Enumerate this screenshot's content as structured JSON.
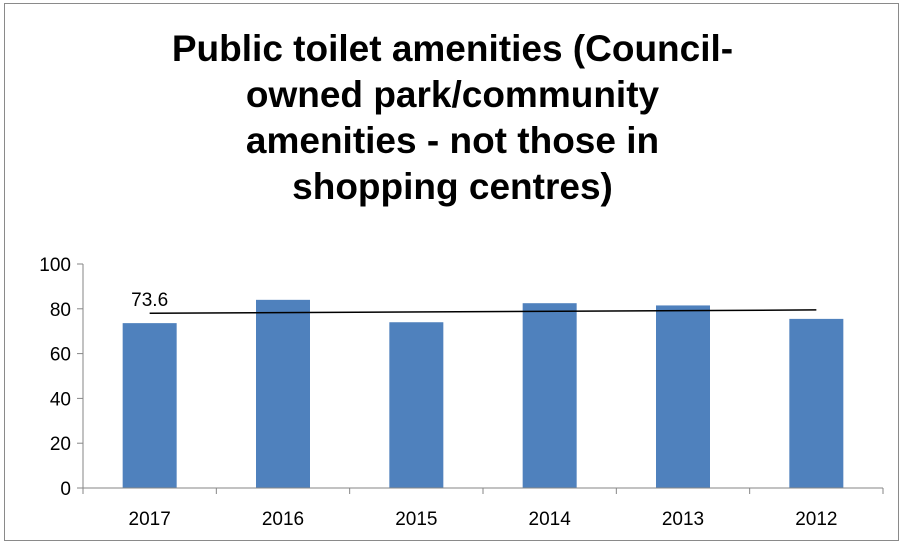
{
  "chart_data": {
    "type": "bar",
    "title_lines": [
      "Public toilet amenities (Council-",
      "owned park/community",
      "amenities - not those in",
      "shopping centres)"
    ],
    "categories": [
      "2017",
      "2016",
      "2015",
      "2014",
      "2013",
      "2012"
    ],
    "values": [
      73.6,
      84,
      74,
      82.5,
      81.5,
      75.5
    ],
    "ylim": [
      0,
      100
    ],
    "yticks": [
      0,
      20,
      40,
      60,
      80,
      100
    ],
    "data_labels": [
      {
        "index": 0,
        "text": "73.6"
      }
    ],
    "trendline": {
      "start": 78,
      "end": 79.5
    },
    "grid": false,
    "legend": "none",
    "colors": {
      "bar": "#4f81bd",
      "axis": "#868686",
      "trendline": "#000000"
    }
  }
}
